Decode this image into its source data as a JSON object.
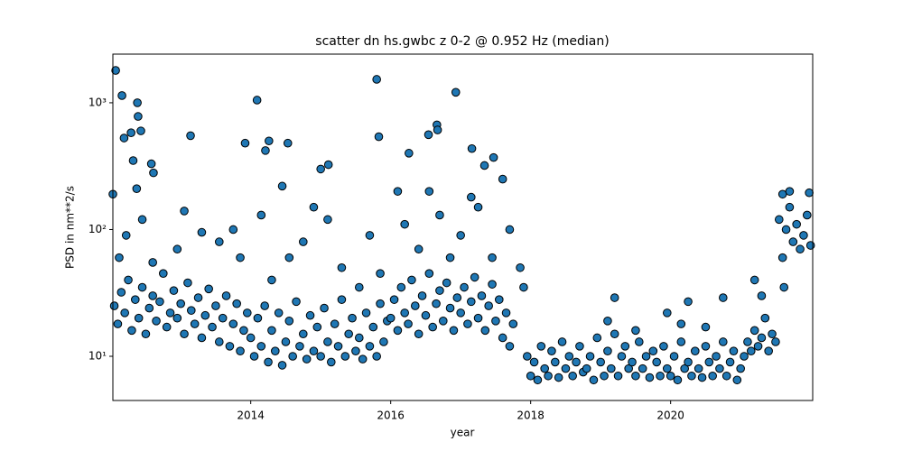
{
  "chart_data": {
    "type": "scatter",
    "title": "scatter dn hs.gwbc z 0-2 @ 0.952 Hz (median)",
    "xlabel": "year",
    "ylabel": "PSD in nm**2/s",
    "color": "#1f77b4",
    "edgecolor": "#000000",
    "xlim": [
      2012.03,
      2022.03
    ],
    "xticks": [
      2014,
      2016,
      2018,
      2020
    ],
    "ylim": [
      4.48,
      2420
    ],
    "yscale": "log",
    "yticks": [
      {
        "value": 10,
        "label": "10¹"
      },
      {
        "value": 100,
        "label": "10²"
      },
      {
        "value": 1000,
        "label": "10³"
      }
    ],
    "x": [
      2012.05,
      2012.1,
      2012.15,
      2012.2,
      2012.25,
      2012.3,
      2012.35,
      2012.4,
      2012.45,
      2012.5,
      2012.55,
      2012.6,
      2012.65,
      2012.7,
      2012.75,
      2012.8,
      2012.85,
      2012.9,
      2012.95,
      2013.0,
      2013.05,
      2013.1,
      2013.15,
      2013.2,
      2013.25,
      2013.3,
      2013.35,
      2013.4,
      2013.45,
      2013.5,
      2013.55,
      2013.6,
      2013.65,
      2013.7,
      2013.75,
      2013.8,
      2013.85,
      2013.9,
      2013.95,
      2012.12,
      2012.22,
      2012.6,
      2012.95,
      2013.3,
      2013.55,
      2013.75,
      2013.85,
      2012.45,
      2013.05,
      2014.0,
      2014.05,
      2014.1,
      2014.15,
      2014.2,
      2014.25,
      2014.3,
      2014.35,
      2014.4,
      2014.45,
      2014.5,
      2014.55,
      2014.6,
      2014.65,
      2014.7,
      2014.75,
      2014.8,
      2014.85,
      2014.9,
      2014.95,
      2015.0,
      2015.05,
      2015.1,
      2015.15,
      2015.2,
      2015.25,
      2015.3,
      2015.35,
      2015.4,
      2015.45,
      2015.5,
      2015.55,
      2015.6,
      2015.65,
      2015.7,
      2015.75,
      2015.8,
      2015.85,
      2015.9,
      2015.95,
      2014.3,
      2014.55,
      2014.75,
      2014.9,
      2015.1,
      2015.3,
      2015.55,
      2015.7,
      2015.85,
      2014.15,
      2014.45,
      2015.0,
      2016.0,
      2016.05,
      2016.1,
      2016.15,
      2016.2,
      2016.25,
      2016.3,
      2016.35,
      2016.4,
      2016.45,
      2016.5,
      2016.55,
      2016.6,
      2016.65,
      2016.7,
      2016.75,
      2016.8,
      2016.85,
      2016.9,
      2016.95,
      2017.0,
      2017.05,
      2017.1,
      2017.15,
      2017.2,
      2017.25,
      2017.3,
      2017.35,
      2017.4,
      2017.45,
      2017.5,
      2017.55,
      2017.6,
      2017.65,
      2017.7,
      2017.75,
      2016.2,
      2016.4,
      2016.55,
      2016.7,
      2016.85,
      2017.0,
      2017.25,
      2017.45,
      2017.6,
      2017.7,
      2016.1,
      2017.15,
      2017.85,
      2017.9,
      2017.95,
      2018.0,
      2018.05,
      2018.1,
      2018.15,
      2018.2,
      2018.25,
      2018.3,
      2018.35,
      2018.4,
      2018.45,
      2018.5,
      2018.55,
      2018.6,
      2018.65,
      2018.7,
      2018.75,
      2018.8,
      2018.85,
      2018.9,
      2018.95,
      2019.0,
      2019.05,
      2019.1,
      2019.15,
      2019.2,
      2019.25,
      2019.3,
      2019.35,
      2019.4,
      2019.45,
      2019.5,
      2019.55,
      2019.6,
      2019.65,
      2019.7,
      2019.75,
      2019.8,
      2019.85,
      2019.9,
      2019.95,
      2020.0,
      2020.05,
      2020.1,
      2020.15,
      2020.2,
      2020.25,
      2020.3,
      2020.35,
      2020.4,
      2020.45,
      2020.5,
      2020.55,
      2020.6,
      2020.65,
      2020.7,
      2020.75,
      2020.8,
      2020.85,
      2020.9,
      2020.95,
      2021.0,
      2021.05,
      2019.2,
      2019.1,
      2019.95,
      2020.25,
      2020.5,
      2020.15,
      2020.75,
      2019.5,
      2021.1,
      2021.15,
      2021.2,
      2021.25,
      2021.3,
      2021.35,
      2021.4,
      2021.45,
      2021.5,
      2021.2,
      2021.3,
      2021.55,
      2021.6,
      2021.65,
      2021.7,
      2021.75,
      2021.8,
      2021.85,
      2021.9,
      2021.95,
      2022.0,
      2021.6,
      2021.7,
      2021.62,
      2021.98,
      2012.07,
      2012.16,
      2012.19,
      2012.29,
      2012.38,
      2012.39,
      2012.43,
      2012.32,
      2012.37,
      2012.03,
      2012.58,
      2012.61,
      2013.14,
      2013.92,
      2014.09,
      2014.26,
      2014.21,
      2014.53,
      2015.11,
      2015.8,
      2015.83,
      2016.93,
      2016.66,
      2016.67,
      2016.54,
      2017.16,
      2017.47,
      2017.34,
      2016.26
    ],
    "values": [
      25,
      18,
      32,
      22,
      40,
      16,
      28,
      20,
      35,
      15,
      24,
      30,
      19,
      27,
      45,
      17,
      22,
      33,
      20,
      26,
      15,
      38,
      23,
      18,
      29,
      14,
      21,
      34,
      17,
      25,
      13,
      20,
      30,
      12,
      18,
      26,
      11,
      16,
      22,
      60,
      90,
      55,
      70,
      95,
      80,
      100,
      60,
      120,
      140,
      14,
      10,
      20,
      12,
      25,
      9,
      16,
      11,
      22,
      8.5,
      13,
      19,
      10,
      27,
      12,
      15,
      9.5,
      21,
      11,
      17,
      10,
      24,
      13,
      9,
      18,
      12,
      28,
      10,
      15,
      20,
      11,
      14,
      9.5,
      22,
      12,
      17,
      10,
      26,
      13,
      19,
      40,
      60,
      80,
      150,
      120,
      50,
      35,
      90,
      45,
      130,
      220,
      300,
      20,
      28,
      16,
      35,
      22,
      18,
      40,
      25,
      15,
      30,
      21,
      45,
      17,
      26,
      33,
      19,
      38,
      24,
      16,
      29,
      22,
      35,
      18,
      27,
      42,
      20,
      30,
      16,
      25,
      37,
      19,
      28,
      14,
      22,
      12,
      18,
      110,
      70,
      200,
      130,
      60,
      90,
      150,
      60,
      250,
      100,
      200,
      180,
      50,
      35,
      10,
      7,
      9,
      6.5,
      12,
      8,
      7,
      11,
      9,
      6.8,
      13,
      8,
      10,
      7,
      9,
      12,
      7.5,
      8,
      10,
      6.5,
      14,
      9,
      7,
      11,
      8,
      15,
      7,
      10,
      12,
      8,
      9,
      7,
      13,
      8,
      10,
      6.8,
      11,
      9,
      7,
      12,
      8,
      7,
      10,
      6.5,
      13,
      8,
      9,
      7,
      11,
      8,
      6.8,
      12,
      9,
      7,
      10,
      8,
      13,
      7,
      9,
      11,
      6.5,
      8,
      10,
      29,
      19,
      22,
      27,
      17,
      18,
      29,
      16,
      13,
      11,
      16,
      12,
      14,
      20,
      11,
      15,
      13,
      40,
      30,
      120,
      60,
      100,
      150,
      80,
      110,
      70,
      90,
      130,
      75,
      190,
      200,
      35,
      195,
      1800,
      1140,
      527,
      580,
      1000,
      780,
      600,
      350,
      210,
      190,
      330,
      280,
      550,
      480,
      1050,
      500,
      420,
      480,
      325,
      1530,
      540,
      1210,
      670,
      610,
      560,
      435,
      370,
      320,
      400
    ]
  }
}
